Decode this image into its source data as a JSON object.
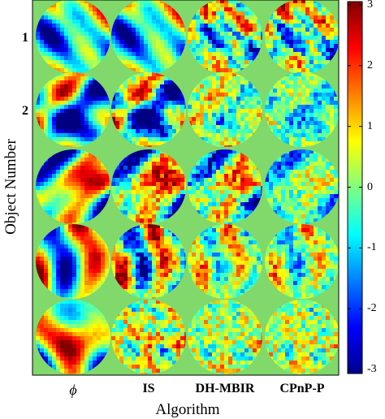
{
  "figure": {
    "y_axis_label": "Object Number",
    "x_axis_label": "Algorithm",
    "row_labels": [
      "1",
      "2"
    ],
    "column_labels": [
      "ϕ",
      "IS",
      "DH-MBIR",
      "CPnP-P"
    ],
    "colorbar": {
      "colormap": "jet",
      "min": -3,
      "max": 3,
      "ticks": [
        "3",
        "2",
        "1",
        "0",
        "-1",
        "-2",
        "-3"
      ]
    },
    "background_color": "#80d96a",
    "grid": {
      "rows": 5,
      "columns": 4
    }
  }
}
